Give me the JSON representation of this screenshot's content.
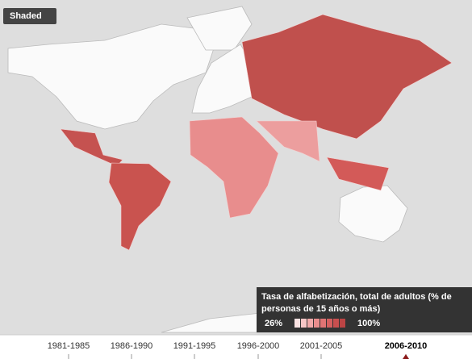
{
  "map_mode": "Shaded",
  "legend": {
    "title_line1": "Tasa de alfabetización, total de adultos (% de",
    "title_line2": "personas de 15 años o más)",
    "min_label": "26%",
    "max_label": "100%"
  },
  "timeline": [
    {
      "label": "1981-1985",
      "selected": false
    },
    {
      "label": "1986-1990",
      "selected": false
    },
    {
      "label": "1991-1995",
      "selected": false
    },
    {
      "label": "1996-2000",
      "selected": false
    },
    {
      "label": "2001-2005",
      "selected": false
    },
    {
      "label": "2006-2010",
      "selected": true
    }
  ]
}
